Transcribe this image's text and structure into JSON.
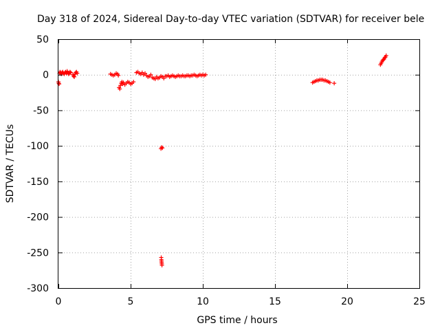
{
  "chart_data": {
    "type": "scatter",
    "title": "Day 318 of 2024, Sidereal Day-to-day VTEC variation (SDTVAR) for receiver bele",
    "xlabel": "GPS time / hours",
    "ylabel": "SDTVAR / TECUs",
    "xlim": [
      0,
      25
    ],
    "ylim": [
      -300,
      50
    ],
    "xticks": [
      "0",
      "5",
      "10",
      "15",
      "20",
      "25"
    ],
    "yticks": [
      "50",
      "0",
      "-50",
      "-100",
      "-150",
      "-200",
      "-250",
      "-300"
    ],
    "grid": true,
    "marker": "+",
    "color": "#ff0000",
    "series": [
      {
        "x": [
          0.0,
          0.02,
          0.05,
          0.08,
          0.1,
          0.15,
          0.2,
          0.25,
          0.3,
          0.35,
          0.4,
          0.45,
          0.5,
          0.55,
          0.6,
          0.65,
          0.7,
          0.75,
          0.8,
          0.85,
          1.0,
          1.05,
          1.1,
          1.15,
          1.2,
          1.25,
          1.3,
          3.6,
          3.7,
          3.8,
          3.9,
          4.0,
          4.1,
          4.15,
          4.2,
          4.25,
          4.3,
          4.35,
          4.4,
          4.45,
          4.5,
          4.6,
          4.7,
          4.8,
          4.9,
          5.0,
          5.1,
          5.2,
          5.4,
          5.5,
          5.6,
          5.7,
          5.8,
          5.9,
          6.0,
          6.1,
          6.2,
          6.3,
          6.4,
          6.5,
          6.6,
          6.7,
          6.8,
          6.9,
          7.0,
          7.1,
          7.2,
          7.3,
          7.4,
          7.5,
          7.6,
          7.7,
          7.8,
          7.9,
          8.0,
          8.1,
          8.2,
          8.3,
          8.4,
          8.5,
          8.6,
          8.7,
          8.8,
          8.9,
          9.0,
          9.1,
          9.2,
          9.3,
          9.4,
          9.5,
          9.6,
          9.7,
          9.8,
          9.9,
          10.0,
          10.1,
          10.2,
          7.1,
          7.15,
          7.2,
          7.12,
          7.13,
          7.14,
          7.15,
          7.16,
          7.17,
          17.6,
          17.7,
          17.8,
          17.9,
          18.0,
          18.1,
          18.2,
          18.3,
          18.4,
          18.5,
          18.6,
          18.7,
          18.8,
          19.1,
          22.3,
          22.35,
          22.4,
          22.45,
          22.5,
          22.55,
          22.6,
          22.65,
          22.7
        ],
        "y": [
          -10,
          -12,
          -13,
          2,
          4,
          3,
          1,
          3,
          4,
          2,
          1,
          3,
          4,
          2,
          5,
          3,
          1,
          2,
          4,
          3,
          0,
          -2,
          -3,
          1,
          3,
          4,
          2,
          1,
          0,
          -1,
          0,
          2,
          1,
          -1,
          -18,
          -20,
          -15,
          -12,
          -10,
          -13,
          -11,
          -14,
          -12,
          -10,
          -11,
          -13,
          -12,
          -10,
          3,
          4,
          2,
          1,
          3,
          0,
          2,
          -1,
          -3,
          -2,
          0,
          -4,
          -5,
          -6,
          -3,
          -5,
          -4,
          -2,
          -3,
          -5,
          -2,
          -2,
          -1,
          -3,
          -2,
          -1,
          -2,
          -3,
          -2,
          -1,
          -2,
          -2,
          -1,
          -2,
          -2,
          -1,
          -1,
          -2,
          -1,
          -1,
          0,
          -1,
          -2,
          -1,
          0,
          -1,
          0,
          -1,
          0,
          -104,
          -102,
          -103,
          -257,
          -260,
          -262,
          -264,
          -266,
          -268,
          -11,
          -10,
          -9,
          -8,
          -8,
          -7,
          -7,
          -7,
          -8,
          -8,
          -9,
          -10,
          -11,
          -12,
          14,
          16,
          18,
          20,
          21,
          22,
          24,
          25,
          27
        ]
      }
    ]
  }
}
